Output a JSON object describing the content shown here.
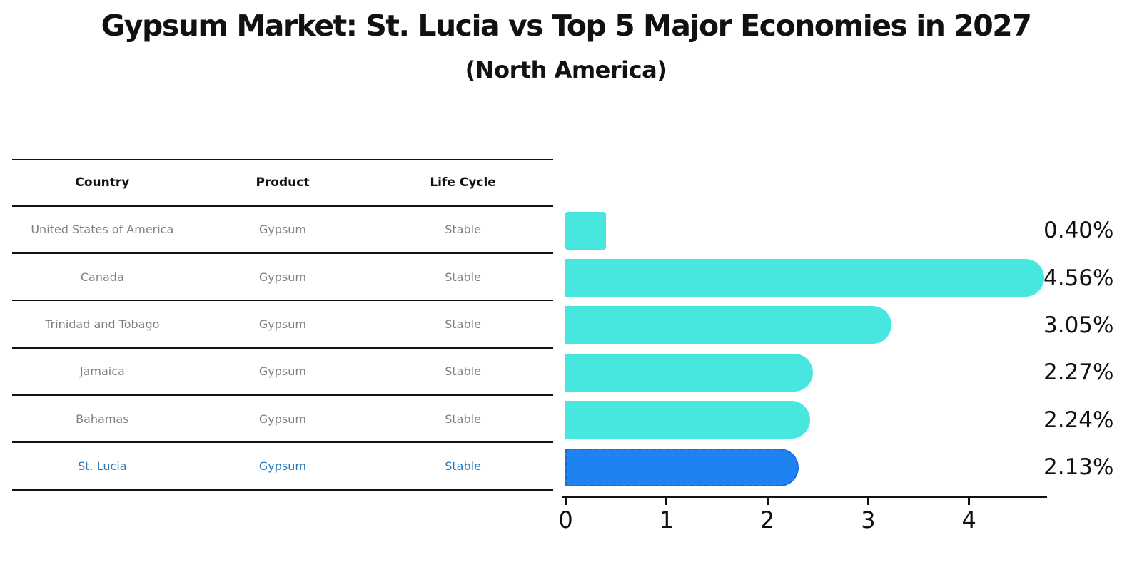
{
  "header": {
    "title": "Gypsum Market: St. Lucia vs Top 5 Major Economies in 2027",
    "subtitle": "(North America)"
  },
  "table": {
    "headers": [
      "Country",
      "Product",
      "Life Cycle"
    ],
    "rows": [
      {
        "country": "United States of America",
        "product": "Gypsum",
        "life_cycle": "Stable",
        "highlighted": false
      },
      {
        "country": "Canada",
        "product": "Gypsum",
        "life_cycle": "Stable",
        "highlighted": false
      },
      {
        "country": "Trinidad and Tobago",
        "product": "Gypsum",
        "life_cycle": "Stable",
        "highlighted": false
      },
      {
        "country": "Jamaica",
        "product": "Gypsum",
        "life_cycle": "Stable",
        "highlighted": false
      },
      {
        "country": "Bahamas",
        "product": "Gypsum",
        "life_cycle": "Stable",
        "highlighted": false
      },
      {
        "country": "St. Lucia",
        "product": "Gypsum",
        "life_cycle": "Stable",
        "highlighted": true
      }
    ]
  },
  "chart_data": {
    "type": "bar",
    "orientation": "horizontal",
    "title": "Gypsum Market: St. Lucia vs Top 5 Major Economies in 2027",
    "subtitle": "(North America)",
    "categories": [
      "United States of America",
      "Canada",
      "Trinidad and Tobago",
      "Jamaica",
      "Bahamas",
      "St. Lucia"
    ],
    "values": [
      0.4,
      4.56,
      3.05,
      2.27,
      2.24,
      2.13
    ],
    "value_labels": [
      "0.40%",
      "4.56%",
      "3.05%",
      "2.27%",
      "2.24%",
      "2.13%"
    ],
    "x_ticks": [
      "0",
      "1",
      "2",
      "3",
      "4"
    ],
    "xlim": [
      0,
      4.8
    ],
    "grid": false,
    "legend": false,
    "highlighted_category": "St. Lucia",
    "colors": {
      "bar": "#47e7df",
      "highlight_bar": "#1e82f0",
      "highlight_border": "#1a66d9",
      "highlight_text": "#2477be",
      "row_text": "#7f7f7f",
      "axis_text": "#111111"
    }
  }
}
